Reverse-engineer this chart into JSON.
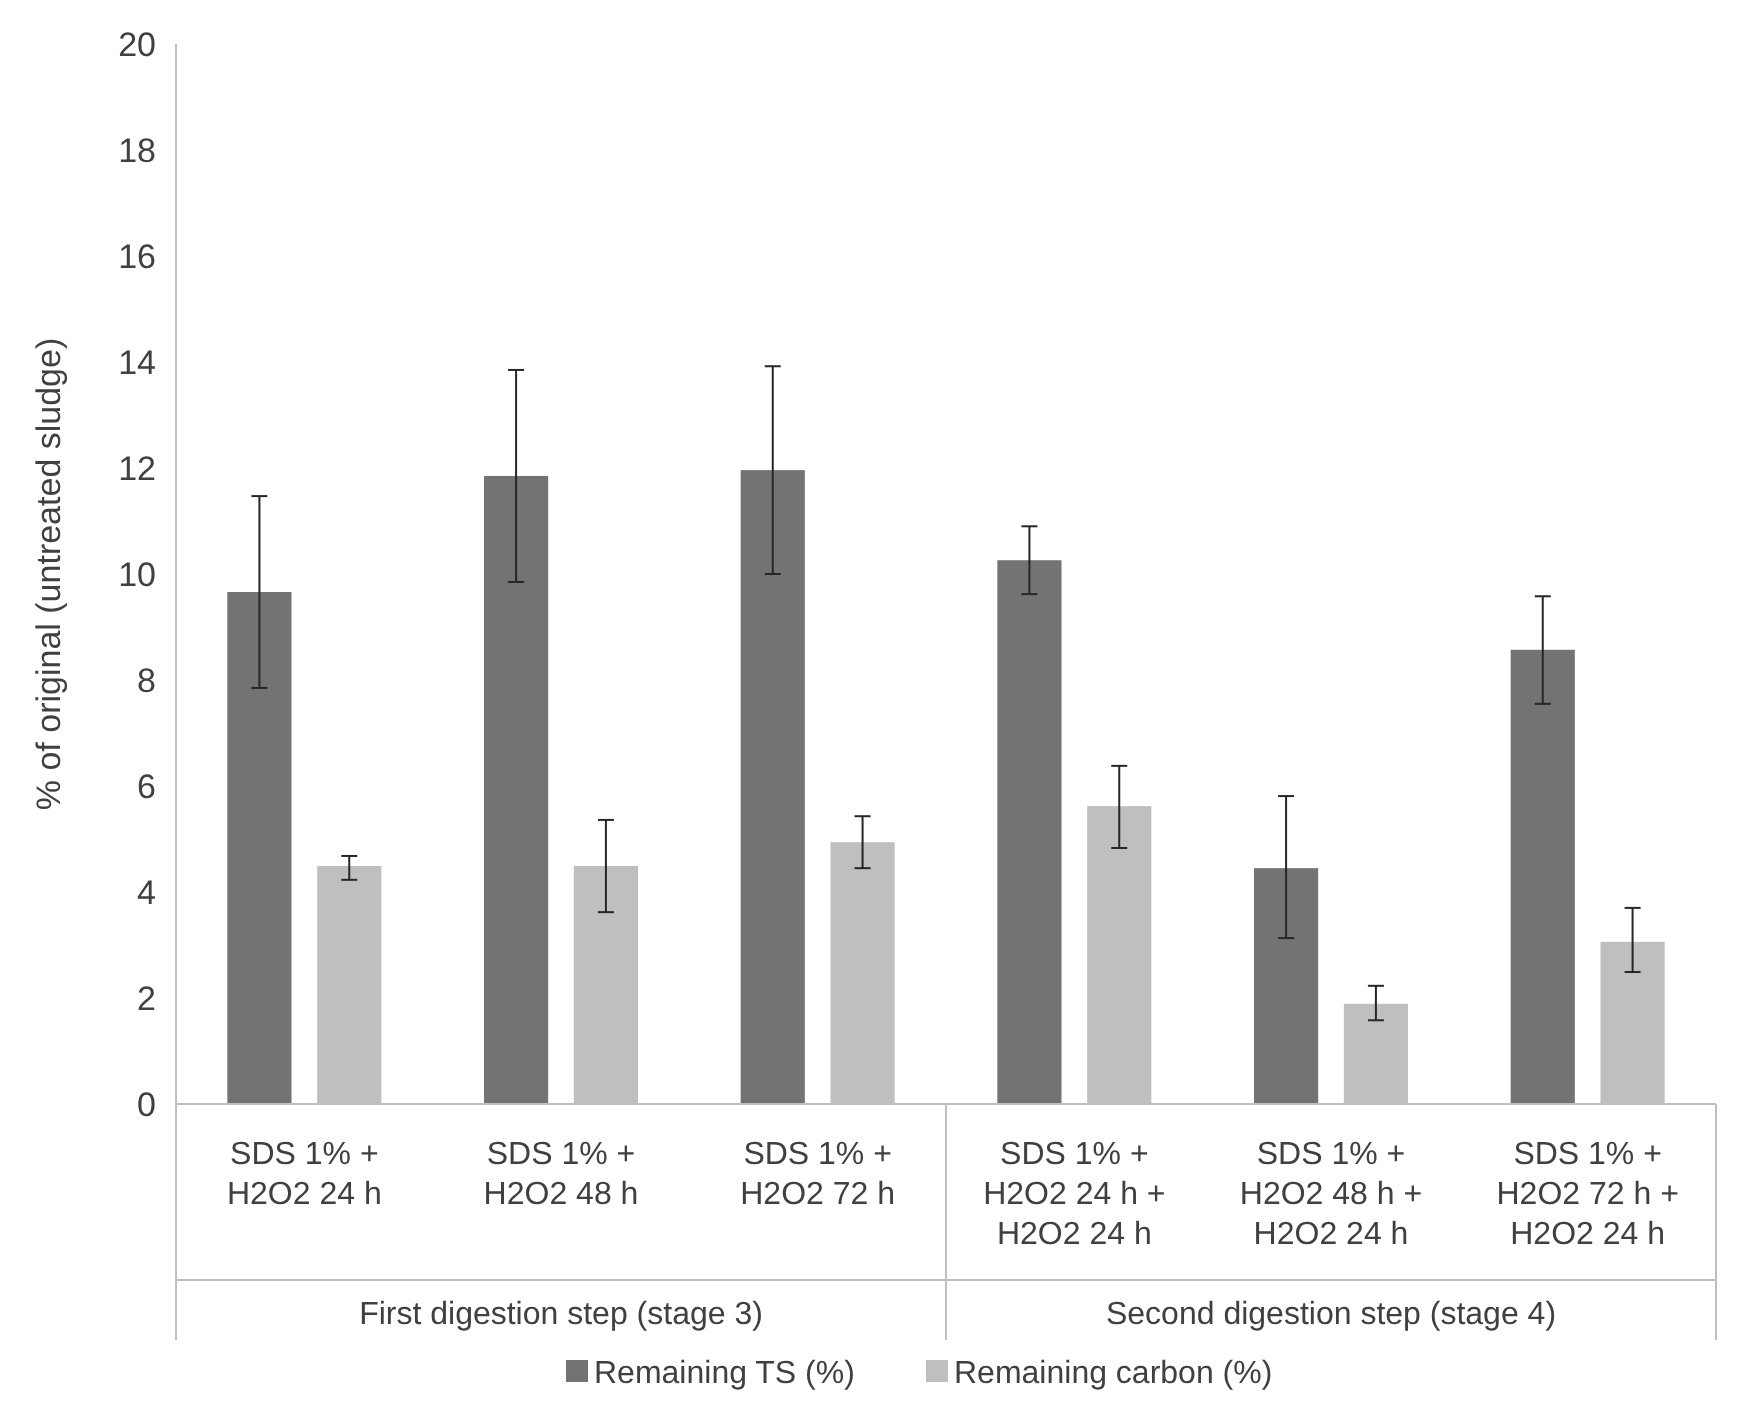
{
  "chart_data": {
    "type": "bar",
    "ylabel": "% of original (untreated sludge)",
    "categories": [
      "SDS 1% +\nH2O2 24 h",
      "SDS 1% +\nH2O2 48 h",
      "SDS 1% +\nH2O2 72 h",
      "SDS 1% +\nH2O2 24 h +\nH2O2 24 h",
      "SDS 1% +\nH2O2 48 h +\nH2O2 24 h",
      "SDS 1% +\nH2O2 72 h +\nH2O2 24 h"
    ],
    "series": [
      {
        "name": "Remaining TS (%)",
        "color": "#737373",
        "values": [
          9.66,
          11.85,
          11.96,
          10.26,
          4.45,
          8.57
        ],
        "errors": [
          [
            7.85,
            11.47
          ],
          [
            9.85,
            13.85
          ],
          [
            10.0,
            13.92
          ],
          [
            9.62,
            10.9
          ],
          [
            3.13,
            5.81
          ],
          [
            7.55,
            9.58
          ]
        ]
      },
      {
        "name": "Remaining carbon (%)",
        "color": "#bfbfbf",
        "values": [
          4.49,
          4.49,
          4.94,
          5.62,
          1.89,
          3.06
        ],
        "errors": [
          [
            4.23,
            4.68
          ],
          [
            3.62,
            5.36
          ],
          [
            4.45,
            5.43
          ],
          [
            4.83,
            6.38
          ],
          [
            1.58,
            2.23
          ],
          [
            2.49,
            3.7
          ]
        ]
      }
    ],
    "ylim": [
      0,
      20
    ],
    "yticks": [
      0,
      2,
      4,
      6,
      8,
      10,
      12,
      14,
      16,
      18,
      20
    ],
    "grid": false,
    "legend": "bottom",
    "annotations": [
      "First digestion step (stage 3)",
      "Second digestion step (stage 4)"
    ]
  }
}
